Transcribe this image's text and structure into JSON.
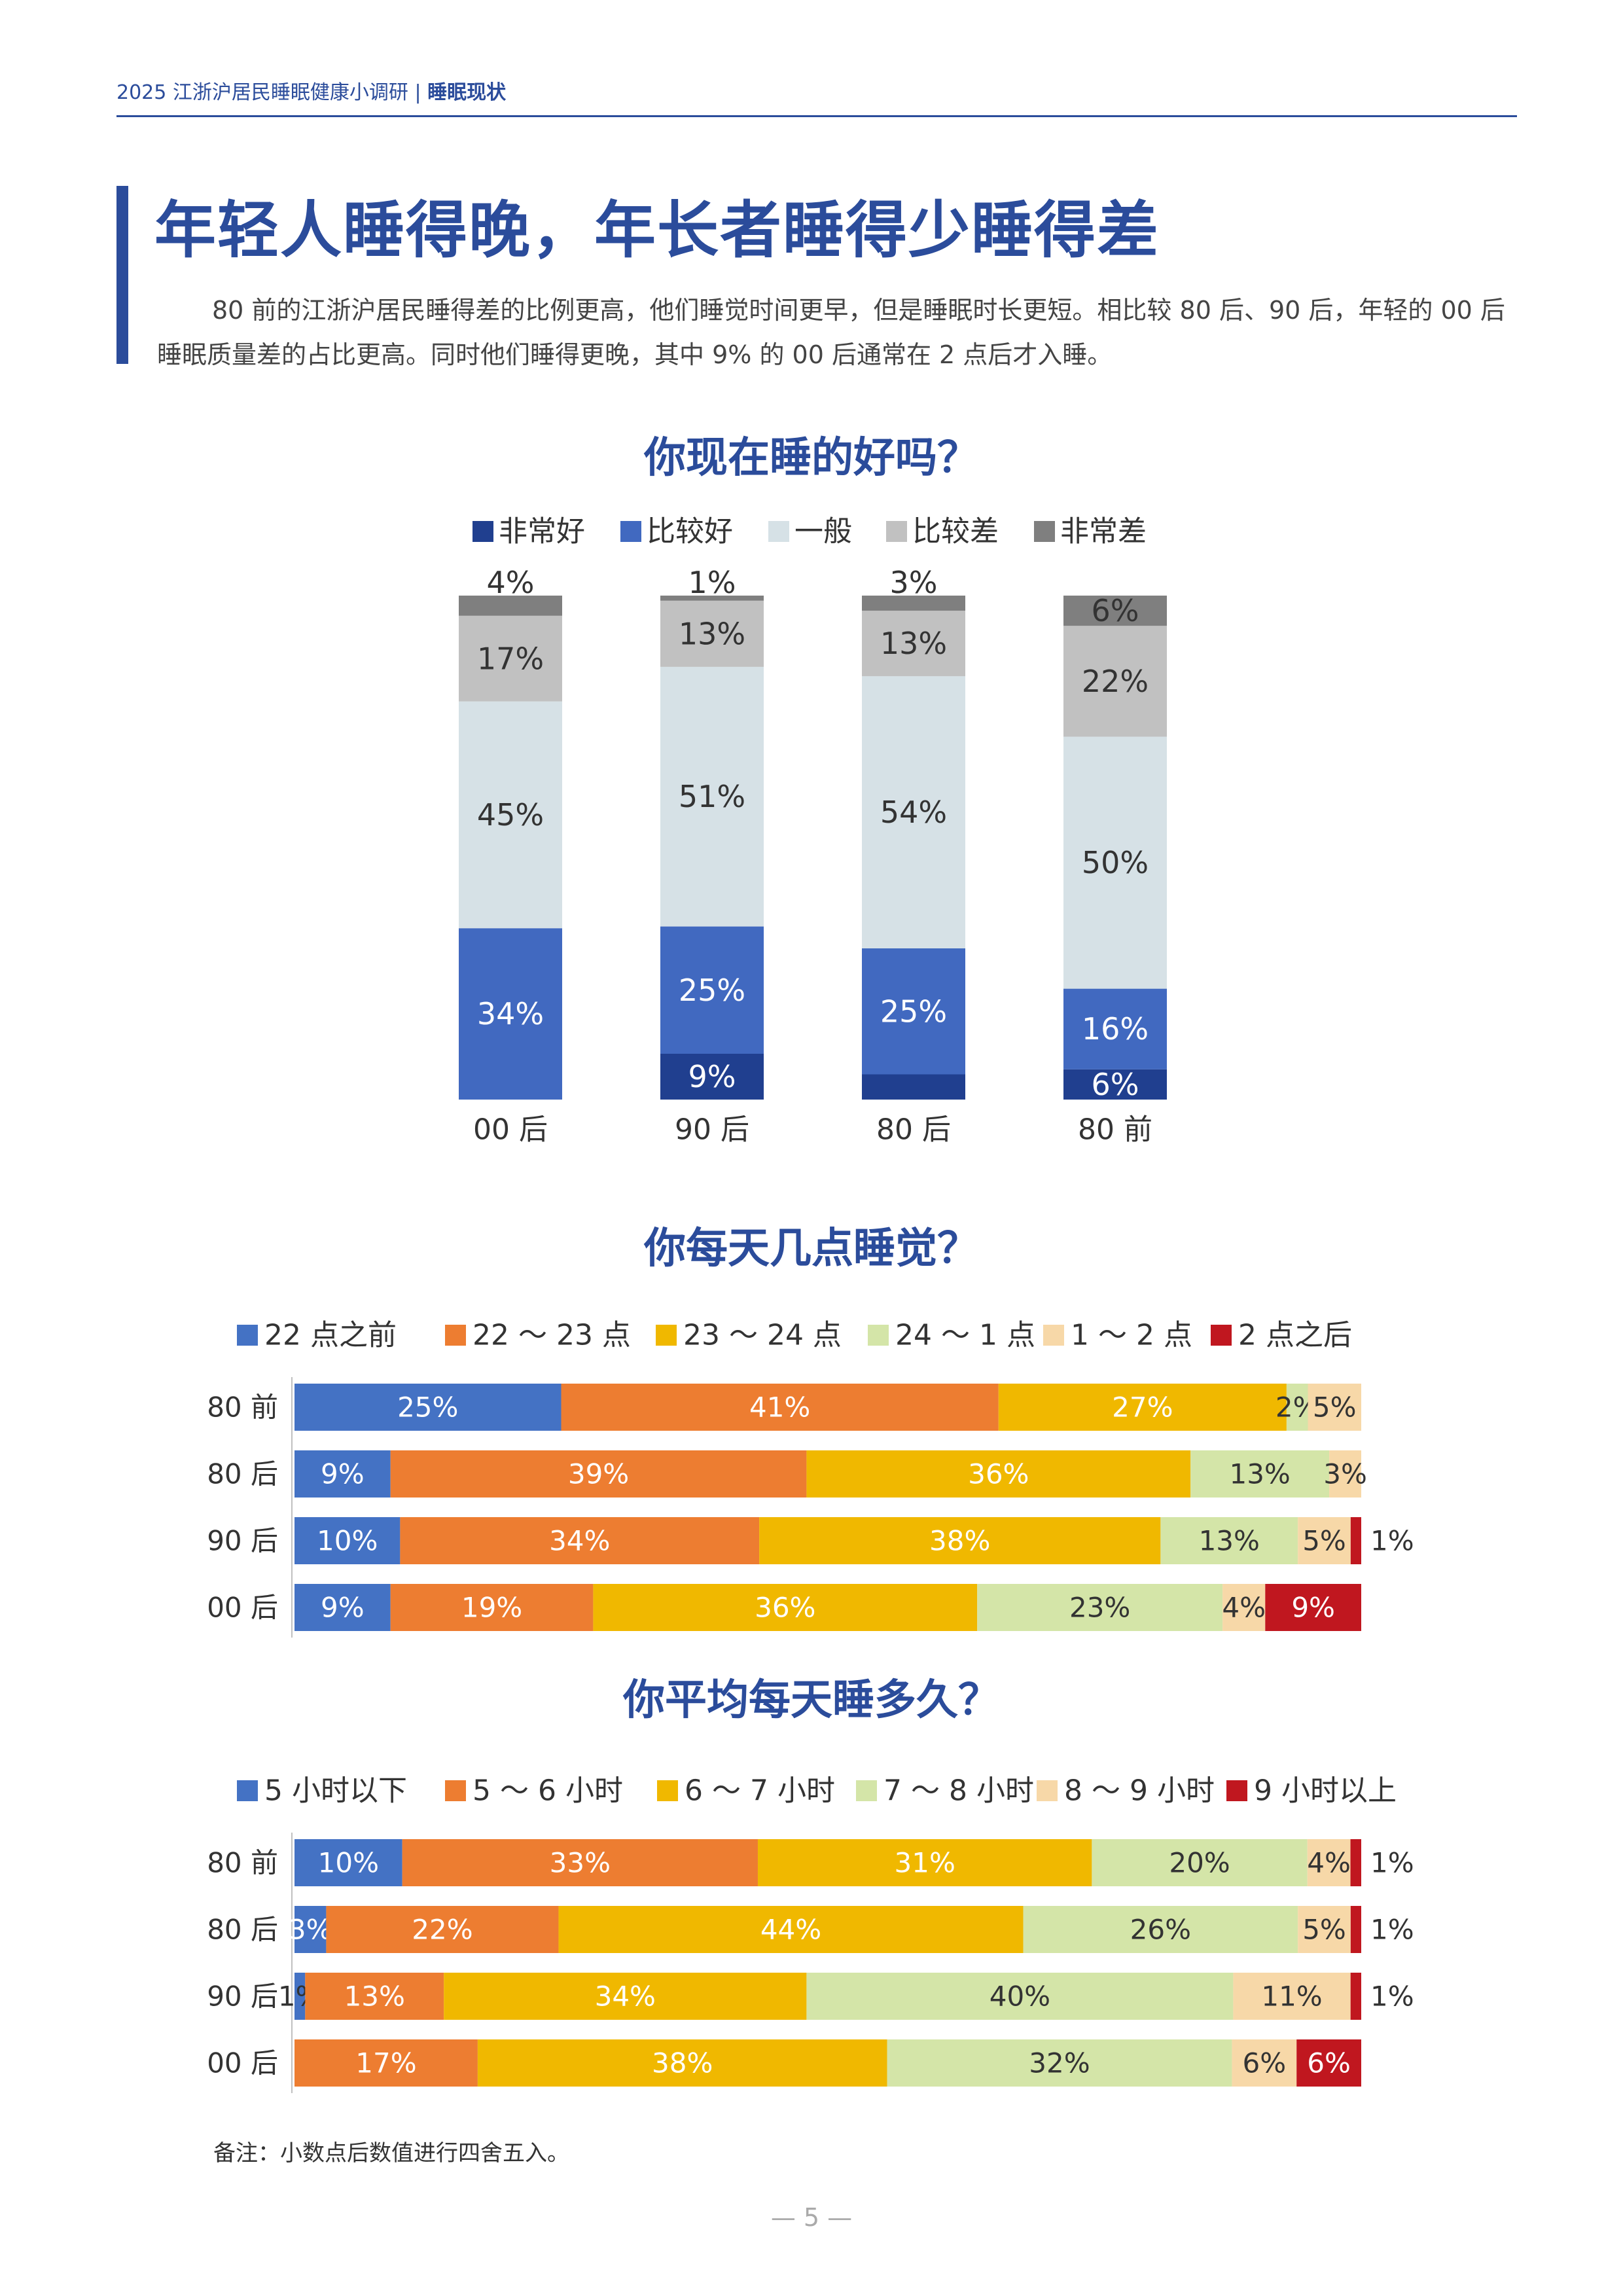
{
  "header": {
    "title": "2025 江浙沪居民睡眠健康小调研",
    "separator": "|",
    "section": "睡眠现状"
  },
  "page_title": "年轻人睡得晚，年长者睡得少睡得差",
  "intro": "80 前的江浙沪居民睡得差的比例更高，他们睡觉时间更早，但是睡眠时长更短。相比较 80 后、90 后，年轻的 00 后睡眠质量差的占比更高。同时他们睡得更晚，其中 9% 的 00 后通常在 2 点后才入睡。",
  "footnote": "备注：小数点后数值进行四舍五入。",
  "page_number": "— 5 —",
  "chart_data": [
    {
      "type": "bar",
      "stacked": true,
      "orientation": "vertical",
      "title": "你现在睡的好吗？",
      "categories": [
        "00 后",
        "90 后",
        "80 后",
        "80 前"
      ],
      "series": [
        {
          "name": "非常好",
          "values": [
            0,
            9,
            5,
            6
          ],
          "labels": [
            "",
            "9%",
            "5%",
            "6%"
          ],
          "color": "#203f8f",
          "text_color": "#ffffff"
        },
        {
          "name": "比较好",
          "values": [
            34,
            25,
            25,
            16
          ],
          "labels": [
            "34%",
            "25%",
            "25%",
            "16%"
          ],
          "color": "#4169c0",
          "text_color": "#ffffff"
        },
        {
          "name": "一般",
          "values": [
            45,
            51,
            54,
            50
          ],
          "labels": [
            "45%",
            "51%",
            "54%",
            "50%"
          ],
          "color": "#d6e1e6",
          "text_color": "#333333"
        },
        {
          "name": "比较差",
          "values": [
            17,
            13,
            13,
            22
          ],
          "labels": [
            "17%",
            "13%",
            "13%",
            "22%"
          ],
          "color": "#c1c1c1",
          "text_color": "#333333"
        },
        {
          "name": "非常差",
          "values": [
            4,
            1,
            3,
            6
          ],
          "labels": [
            "4%",
            "1%",
            "3%",
            "6%"
          ],
          "color": "#7f7f7f",
          "text_color": "#333333"
        }
      ],
      "legend": "top",
      "grid": false
    },
    {
      "type": "bar",
      "stacked": true,
      "orientation": "horizontal",
      "title": "你每天几点睡觉？",
      "categories": [
        "80 前",
        "80 后",
        "90 后",
        "00 后"
      ],
      "series": [
        {
          "name": "22 点之前",
          "values": [
            25,
            9,
            10,
            9
          ],
          "labels": [
            "25%",
            "9%",
            "10%",
            "9%"
          ],
          "color": "#4472c4",
          "text_color": "#ffffff"
        },
        {
          "name": "22 ～ 23 点",
          "values": [
            41,
            39,
            34,
            19
          ],
          "labels": [
            "41%",
            "39%",
            "34%",
            "19%"
          ],
          "color": "#ed7d31",
          "text_color": "#ffffff"
        },
        {
          "name": "23 ～ 24 点",
          "values": [
            27,
            36,
            38,
            36
          ],
          "labels": [
            "27%",
            "36%",
            "38%",
            "36%"
          ],
          "color": "#f0b800",
          "text_color": "#ffffff"
        },
        {
          "name": "24 ～ 1 点",
          "values": [
            2,
            13,
            13,
            23
          ],
          "labels": [
            "2%",
            "13%",
            "13%",
            "23%"
          ],
          "color": "#d4e5a8",
          "text_color": "#333333"
        },
        {
          "name": "1 ～ 2 点",
          "values": [
            5,
            3,
            5,
            4
          ],
          "labels": [
            "5%",
            "3%",
            "5%",
            "4%"
          ],
          "color": "#f7d8a8",
          "text_color": "#333333"
        },
        {
          "name": "2 点之后",
          "values": [
            0,
            0,
            1,
            9
          ],
          "labels": [
            "",
            "",
            "1%",
            "9%"
          ],
          "color": "#c0171f",
          "text_color": "#ffffff"
        }
      ],
      "legend": "top",
      "grid": false
    },
    {
      "type": "bar",
      "stacked": true,
      "orientation": "horizontal",
      "title": "你平均每天睡多久？",
      "categories": [
        "80 前",
        "80 后",
        "90 后",
        "00 后"
      ],
      "series": [
        {
          "name": "5 小时以下",
          "values": [
            10,
            3,
            1,
            0
          ],
          "labels": [
            "10%",
            "3%",
            "1%",
            ""
          ],
          "color": "#4472c4",
          "text_color": "#ffffff"
        },
        {
          "name": "5 ～ 6 小时",
          "values": [
            33,
            22,
            13,
            17
          ],
          "labels": [
            "33%",
            "22%",
            "13%",
            "17%"
          ],
          "color": "#ed7d31",
          "text_color": "#ffffff"
        },
        {
          "name": "6 ～ 7 小时",
          "values": [
            31,
            44,
            34,
            38
          ],
          "labels": [
            "31%",
            "44%",
            "34%",
            "38%"
          ],
          "color": "#f0b800",
          "text_color": "#ffffff"
        },
        {
          "name": "7 ～ 8 小时",
          "values": [
            20,
            26,
            40,
            32
          ],
          "labels": [
            "20%",
            "26%",
            "40%",
            "32%"
          ],
          "color": "#d4e5a8",
          "text_color": "#333333"
        },
        {
          "name": "8 ～ 9 小时",
          "values": [
            4,
            5,
            11,
            6
          ],
          "labels": [
            "4%",
            "5%",
            "11%",
            "6%"
          ],
          "color": "#f7d8a8",
          "text_color": "#333333"
        },
        {
          "name": "9 小时以上",
          "values": [
            1,
            1,
            1,
            6
          ],
          "labels": [
            "1%",
            "1%",
            "1%",
            "6%"
          ],
          "color": "#c0171f",
          "text_color": "#ffffff"
        }
      ],
      "legend": "top",
      "grid": false
    }
  ]
}
